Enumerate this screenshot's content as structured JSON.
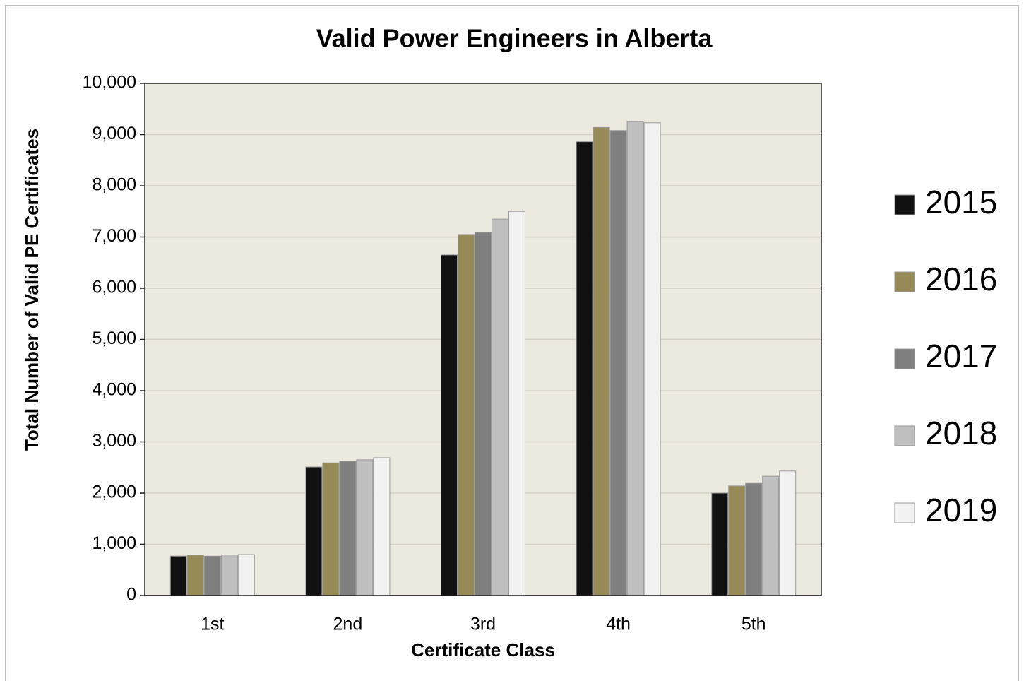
{
  "chart_data": {
    "type": "bar",
    "title": "Valid Power Engineers in Alberta",
    "x_label": "Certificate Class",
    "y_label": "Total Number of Valid PE Certificates",
    "categories": [
      "1st",
      "2nd",
      "3rd",
      "4th",
      "5th"
    ],
    "series": [
      {
        "name": "2015",
        "color": "#111111",
        "values": [
          770,
          2510,
          6650,
          8860,
          2000
        ]
      },
      {
        "name": "2016",
        "color": "#968a56",
        "values": [
          790,
          2590,
          7050,
          9140,
          2140
        ]
      },
      {
        "name": "2017",
        "color": "#7f7f7f",
        "values": [
          770,
          2620,
          7090,
          9080,
          2190
        ]
      },
      {
        "name": "2018",
        "color": "#bfbfbf",
        "values": [
          790,
          2650,
          7350,
          9260,
          2330
        ]
      },
      {
        "name": "2019",
        "color": "#f2f2f2",
        "values": [
          800,
          2690,
          7500,
          9230,
          2430
        ]
      }
    ],
    "ylim": [
      0,
      10000
    ],
    "yticks": [
      0,
      {
        "value": 1000,
        "label": "1,000"
      },
      {
        "value": 2000,
        "label": "2,000"
      },
      {
        "value": 3000,
        "label": "3,000"
      },
      {
        "value": 4000,
        "label": "4,000"
      },
      {
        "value": 5000,
        "label": "5,000"
      },
      {
        "value": 6000,
        "label": "6,000"
      },
      {
        "value": 7000,
        "label": "7,000"
      },
      {
        "value": 8000,
        "label": "8,000"
      },
      {
        "value": 9000,
        "label": "9,000"
      },
      {
        "value": 10000,
        "label": "10,000"
      }
    ],
    "grid": true,
    "legend": "right"
  }
}
